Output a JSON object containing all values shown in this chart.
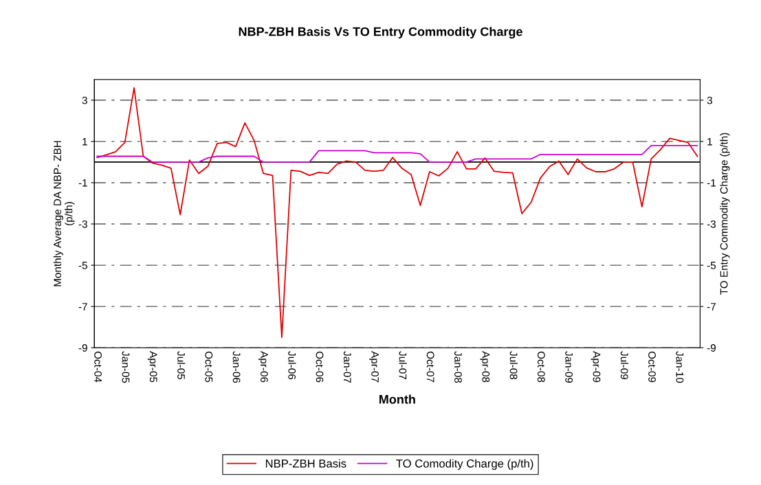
{
  "chart_data": {
    "type": "line",
    "title": "NBP-ZBH Basis Vs TO Entry Commodity Charge",
    "xlabel": "Month",
    "ylabel": "Monthly Average DA NBP- ZBH\n(p/th)",
    "y2label": "TO Entry Commodity Charge (p/th)",
    "categories": [
      "Oct-04",
      null,
      null,
      "Jan-05",
      null,
      null,
      "Apr-05",
      null,
      null,
      "Jul-05",
      null,
      null,
      "Oct-05",
      null,
      null,
      "Jan-06",
      null,
      null,
      "Apr-06",
      null,
      null,
      "Jul-06",
      null,
      null,
      "Oct-06",
      null,
      null,
      "Jan-07",
      null,
      null,
      "Apr-07",
      null,
      null,
      "Jul-07",
      null,
      null,
      "Oct-07",
      null,
      null,
      "Jan-08",
      null,
      null,
      "Apr-08",
      null,
      null,
      "Jul-08",
      null,
      null,
      "Oct-08",
      null,
      null,
      "Jan-09",
      null,
      null,
      "Apr-09",
      null,
      null,
      "Jul-09",
      null,
      null,
      "Oct-09",
      null,
      null,
      "Jan-10",
      null,
      null
    ],
    "series": [
      {
        "name": "NBP-ZBH Basis",
        "color": "#dd0000",
        "values": [
          0.22,
          0.35,
          0.5,
          0.95,
          3.6,
          0.28,
          -0.05,
          -0.15,
          -0.3,
          -2.55,
          0.1,
          -0.55,
          -0.2,
          0.9,
          0.95,
          0.75,
          1.9,
          1.05,
          -0.55,
          -0.65,
          -8.5,
          -0.4,
          -0.45,
          -0.65,
          -0.5,
          -0.55,
          -0.1,
          0.05,
          0,
          -0.4,
          -0.45,
          -0.4,
          0.22,
          -0.3,
          -0.6,
          -2.1,
          -0.47,
          -0.67,
          -0.3,
          0.5,
          -0.33,
          -0.33,
          0.2,
          -0.45,
          -0.5,
          -0.52,
          -2.5,
          -1.95,
          -0.78,
          -0.22,
          0.05,
          -0.6,
          0.15,
          -0.28,
          -0.47,
          -0.47,
          -0.33,
          0,
          0,
          -2.17,
          0.15,
          0.6,
          1.15,
          1.05,
          0.95,
          0.28
        ]
      },
      {
        "name": "TO Comodity Charge (p/th)",
        "color": "#cc00cc",
        "values": [
          0.28,
          0.28,
          0.28,
          0.28,
          0.28,
          0.28,
          0,
          0,
          0,
          0,
          0,
          0,
          0.2,
          0.28,
          0.28,
          0.28,
          0.28,
          0.28,
          0,
          0,
          0,
          0,
          0,
          0,
          0.55,
          0.55,
          0.55,
          0.55,
          0.55,
          0.55,
          0.45,
          0.45,
          0.45,
          0.45,
          0.45,
          0.4,
          0,
          0,
          0,
          0,
          0,
          0.15,
          0.15,
          0.15,
          0.15,
          0.15,
          0.15,
          0.15,
          0.37,
          0.37,
          0.37,
          0.37,
          0.37,
          0.37,
          0.37,
          0.37,
          0.37,
          0.37,
          0.37,
          0.37,
          0.8,
          0.8,
          0.8,
          0.8,
          0.8,
          0.8
        ]
      }
    ],
    "ylim": [
      -9,
      4
    ],
    "yticks": [
      -9,
      -7,
      -5,
      -3,
      -1,
      1,
      3
    ],
    "y2lim": [
      -9,
      4
    ],
    "y2ticks": [
      -9,
      -7,
      -5,
      -3,
      -1,
      1,
      3
    ],
    "ref_lines": [
      {
        "axis": "y",
        "value": 0,
        "color": "#000000"
      }
    ],
    "grid": "y",
    "legend": "bottom",
    "line_style": "solid",
    "marker": "none"
  }
}
